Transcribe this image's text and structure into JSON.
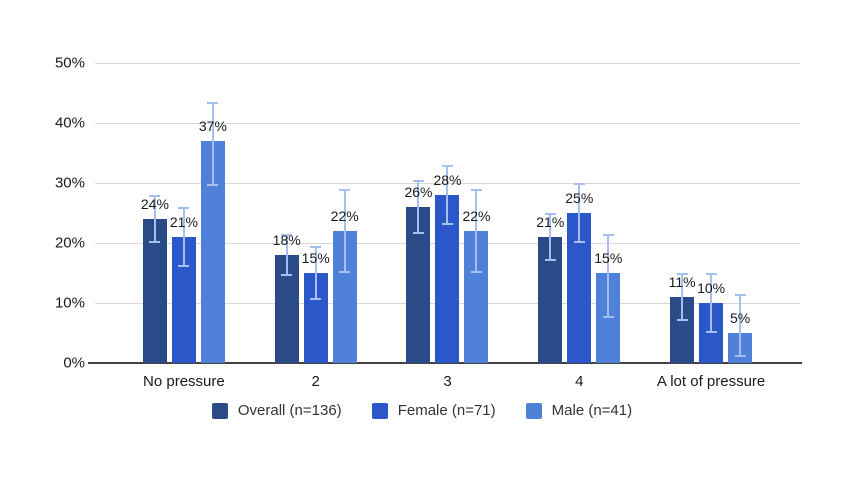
{
  "chart_data": {
    "type": "bar",
    "title": "",
    "categories": [
      "No pressure",
      "2",
      "3",
      "4",
      "A lot of pressure"
    ],
    "series": [
      {
        "name": "Overall (n=136)",
        "color": "#2a4b87",
        "values": [
          24,
          18,
          26,
          21,
          11
        ],
        "error_low": [
          20,
          14.5,
          21.5,
          17,
          7
        ],
        "error_high": [
          28,
          21.5,
          30.5,
          25,
          15
        ]
      },
      {
        "name": "Female (n=71)",
        "color": "#2b57c8",
        "values": [
          21,
          15,
          28,
          25,
          10
        ],
        "error_low": [
          16,
          10.5,
          23,
          20,
          5
        ],
        "error_high": [
          26,
          19.5,
          33,
          30,
          15
        ]
      },
      {
        "name": "Male (n=41)",
        "color": "#5081d8",
        "values": [
          37,
          22,
          22,
          15,
          5
        ],
        "error_low": [
          29.5,
          15,
          15,
          7.5,
          1
        ],
        "error_high": [
          43.5,
          29,
          29,
          21.5,
          11.5
        ]
      }
    ],
    "value_suffix": "%",
    "ylim": [
      0,
      50
    ],
    "yticks": [
      0,
      10,
      20,
      30,
      40,
      50
    ],
    "ytick_labels": [
      "0%",
      "10%",
      "20%",
      "30%",
      "40%",
      "50%"
    ],
    "grid": true,
    "legend_position": "bottom",
    "error_bar_color": "#a5c0ee",
    "colors": {
      "background": "#ffffff",
      "gridline": "#d9d9d9",
      "axis_line": "#424242",
      "text": "#1a1a1a"
    }
  }
}
